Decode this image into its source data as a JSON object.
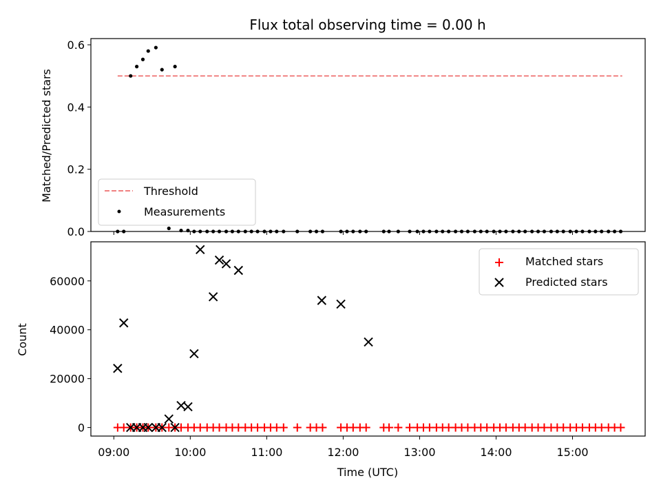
{
  "chart_data": {
    "title": "Flux total observing time = 0.00 h",
    "x_axis": {
      "label": "Time (UTC)",
      "units": "hours (UTC)",
      "range": [
        8.7,
        15.95
      ],
      "ticks": [
        9,
        10,
        11,
        12,
        13,
        14,
        15
      ],
      "tick_labels": [
        "09:00",
        "10:00",
        "11:00",
        "12:00",
        "13:00",
        "14:00",
        "15:00"
      ]
    },
    "panels": [
      {
        "type": "scatter",
        "ylabel": "Matched/Predicted stars",
        "ylim": [
          0,
          0.62
        ],
        "yticks": [
          0.0,
          0.2,
          0.4,
          0.6
        ],
        "ytick_labels": [
          "0.0",
          "0.2",
          "0.4",
          "0.6"
        ],
        "legend_position": "lower-left",
        "threshold": {
          "name": "Threshold",
          "y": 0.5,
          "x_range": [
            9.05,
            15.65
          ],
          "color": "#f08080",
          "style": "dashed"
        },
        "series": [
          {
            "name": "Measurements",
            "color": "#000000",
            "marker": "dot",
            "x": [
              9.05,
              9.13,
              9.22,
              9.3,
              9.38,
              9.45,
              9.55,
              9.63,
              9.72,
              9.8,
              9.88,
              9.97,
              10.05,
              10.13,
              10.22,
              10.3,
              10.38,
              10.47,
              10.55,
              10.63,
              10.72,
              10.8,
              10.88,
              10.97,
              11.05,
              11.13,
              11.22,
              11.4,
              11.57,
              11.65,
              11.73,
              11.97,
              12.05,
              12.13,
              12.22,
              12.3,
              12.53,
              12.6,
              12.72,
              12.87,
              12.97,
              13.05,
              13.13,
              13.22,
              13.3,
              13.38,
              13.47,
              13.55,
              13.63,
              13.72,
              13.8,
              13.88,
              13.97,
              14.05,
              14.13,
              14.22,
              14.3,
              14.38,
              14.47,
              14.55,
              14.63,
              14.72,
              14.8,
              14.88,
              14.97,
              15.05,
              15.13,
              15.22,
              15.3,
              15.38,
              15.47,
              15.55,
              15.63
            ],
            "y": [
              0,
              0,
              0.5,
              0.53,
              0.553,
              0.58,
              0.591,
              0.52,
              0.01,
              0.53,
              0.003,
              0.003,
              0,
              0,
              0,
              0,
              0,
              0,
              0,
              0,
              0,
              0,
              0,
              0,
              0,
              0,
              0,
              0,
              0,
              0,
              0,
              0,
              0,
              0,
              0,
              0,
              0,
              0,
              0,
              0,
              0,
              0,
              0,
              0,
              0,
              0,
              0,
              0,
              0,
              0,
              0,
              0,
              0,
              0,
              0,
              0,
              0,
              0,
              0,
              0,
              0,
              0,
              0,
              0,
              0,
              0,
              0,
              0,
              0,
              0,
              0,
              0,
              0
            ]
          }
        ]
      },
      {
        "type": "scatter",
        "ylabel": "Count",
        "ylim": [
          -3500,
          76000
        ],
        "yticks": [
          0,
          20000,
          40000,
          60000
        ],
        "ytick_labels": [
          "0",
          "20000",
          "40000",
          "60000"
        ],
        "legend_position": "top-right",
        "series": [
          {
            "name": "Matched stars",
            "color": "#ff0000",
            "marker": "plus",
            "x": [
              9.05,
              9.13,
              9.22,
              9.3,
              9.38,
              9.45,
              9.55,
              9.63,
              9.72,
              9.8,
              9.88,
              9.97,
              10.05,
              10.13,
              10.22,
              10.3,
              10.38,
              10.47,
              10.55,
              10.63,
              10.72,
              10.8,
              10.88,
              10.97,
              11.05,
              11.13,
              11.22,
              11.4,
              11.57,
              11.65,
              11.73,
              11.97,
              12.05,
              12.13,
              12.22,
              12.3,
              12.53,
              12.6,
              12.72,
              12.87,
              12.97,
              13.05,
              13.13,
              13.22,
              13.3,
              13.38,
              13.47,
              13.55,
              13.63,
              13.72,
              13.8,
              13.88,
              13.97,
              14.05,
              14.13,
              14.22,
              14.3,
              14.38,
              14.47,
              14.55,
              14.63,
              14.72,
              14.8,
              14.88,
              14.97,
              15.05,
              15.13,
              15.22,
              15.3,
              15.38,
              15.47,
              15.55,
              15.63
            ],
            "y": [
              0,
              0,
              0,
              0,
              0,
              0,
              0,
              0,
              0,
              0,
              0,
              0,
              0,
              0,
              0,
              0,
              0,
              0,
              0,
              0,
              0,
              0,
              0,
              0,
              0,
              0,
              0,
              0,
              0,
              0,
              0,
              0,
              0,
              0,
              0,
              0,
              0,
              0,
              0,
              0,
              0,
              0,
              0,
              0,
              0,
              0,
              0,
              0,
              0,
              0,
              0,
              0,
              0,
              0,
              0,
              0,
              0,
              0,
              0,
              0,
              0,
              0,
              0,
              0,
              0,
              0,
              0,
              0,
              0,
              0,
              0,
              0,
              0
            ]
          },
          {
            "name": "Predicted stars",
            "color": "#000000",
            "marker": "x",
            "x": [
              9.05,
              9.13,
              9.22,
              9.3,
              9.38,
              9.45,
              9.55,
              9.63,
              9.72,
              9.8,
              9.88,
              9.97,
              10.05,
              10.13,
              10.3,
              10.38,
              10.47,
              10.63,
              11.72,
              11.97,
              12.33
            ],
            "y": [
              24200,
              42800,
              0,
              0,
              0,
              0,
              0,
              0,
              3500,
              0,
              9000,
              8500,
              30200,
              72800,
              53500,
              68500,
              67000,
              64300,
              52000,
              50500,
              35000
            ]
          }
        ]
      }
    ]
  }
}
